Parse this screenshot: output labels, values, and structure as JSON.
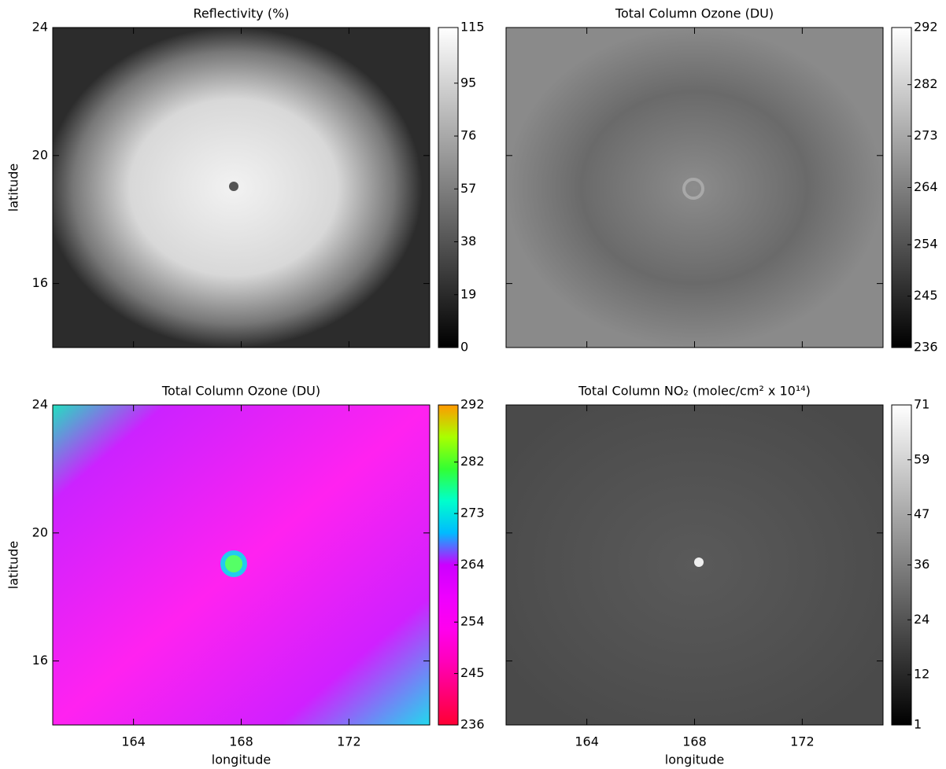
{
  "chart_data": [
    {
      "type": "heatmap",
      "title": "Reflectivity (%)",
      "ylabel": "latitude",
      "xlim": [
        161,
        175
      ],
      "ylim": [
        14,
        24
      ],
      "xticks": [
        164,
        168,
        172
      ],
      "yticks": [
        16,
        20,
        24
      ],
      "colorbar": {
        "lim": [
          0,
          115
        ],
        "ticks": [
          0,
          19,
          38,
          57,
          76,
          95,
          115
        ],
        "colormap": [
          "#000000",
          "#ffffff"
        ]
      }
    },
    {
      "type": "heatmap",
      "title": "Total Column Ozone (DU)",
      "xlim": [
        161,
        175
      ],
      "ylim": [
        14,
        24
      ],
      "xticks": [
        164,
        168,
        172
      ],
      "yticks": [
        16,
        20,
        24
      ],
      "colorbar": {
        "lim": [
          236,
          292
        ],
        "ticks": [
          236,
          245,
          254,
          264,
          273,
          282,
          292
        ],
        "colormap": [
          "#000000",
          "#ffffff"
        ]
      }
    },
    {
      "type": "heatmap",
      "title": "Total Column Ozone (DU)",
      "ylabel": "latitude",
      "xlabel": "longitude",
      "xlim": [
        161,
        175
      ],
      "ylim": [
        14,
        24
      ],
      "xticks": [
        164,
        168,
        172
      ],
      "yticks": [
        16,
        20,
        24
      ],
      "colorbar": {
        "lim": [
          236,
          292
        ],
        "ticks": [
          236,
          245,
          254,
          264,
          273,
          282,
          292
        ],
        "colormap": [
          "#ff0033",
          "#ff0077",
          "#ff00bb",
          "#ff00ee",
          "#ee00ff",
          "#cc00ff",
          "#00bbff",
          "#00ffcc",
          "#33ff33",
          "#aaff00",
          "#ff9900"
        ]
      }
    },
    {
      "type": "heatmap",
      "title": "Total Column NO₂ (molec/cm² x 10¹⁴)",
      "xlabel": "longitude",
      "xlim": [
        161,
        175
      ],
      "ylim": [
        14,
        24
      ],
      "xticks": [
        164,
        168,
        172
      ],
      "yticks": [
        16,
        20,
        24
      ],
      "colorbar": {
        "lim": [
          1,
          71
        ],
        "ticks": [
          1,
          12,
          24,
          36,
          47,
          59,
          71
        ],
        "colormap": [
          "#000000",
          "#ffffff"
        ]
      }
    }
  ]
}
